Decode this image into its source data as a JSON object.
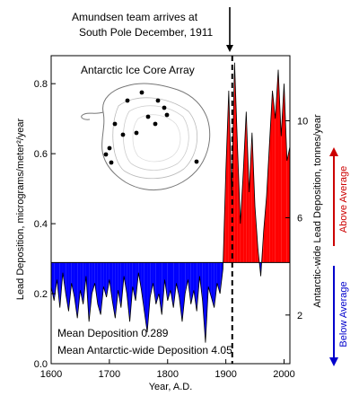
{
  "chart_data": {
    "type": "area",
    "title": "",
    "annotation_title": "Amundsen team arrives at South Pole December, 1911",
    "annotation_lines": [
      "Amundsen team arrives at",
      "South Pole December, 1911"
    ],
    "event_year": 1911,
    "inset_label": "Antarctic Ice Core Array",
    "xlabel": "Year, A.D.",
    "ylabel_left": "Lead Deposition, micrograms/meter²/year",
    "ylabel_right": "Antarctic-wide Lead Deposition, tonnes/year",
    "xlim": [
      1600,
      2010
    ],
    "ylim": [
      0,
      0.88
    ],
    "x_ticks": [
      "1600",
      "1700",
      "1800",
      "1900",
      "2000"
    ],
    "y_ticks_left": [
      "0.0",
      "0.2",
      "0.4",
      "0.6",
      "0.8"
    ],
    "y_ticks_right": [
      "2",
      "6",
      "10"
    ],
    "y_ticks_right_positions": [
      0.139,
      0.417,
      0.694
    ],
    "mean_deposition": 0.289,
    "mean_label": "Mean Deposition 0.289",
    "mean_antarctic_label": "Mean Antarctic-wide Deposition 4.05",
    "above_label": "Above Average",
    "below_label": "Below Average",
    "colors": {
      "above": "#ff0000",
      "below": "#0000ff",
      "above_text": "#cc0000",
      "below_text": "#0000cc"
    },
    "series": [
      {
        "x": [
          1600,
          1605,
          1610,
          1615,
          1620,
          1625,
          1630,
          1635,
          1640,
          1645,
          1650,
          1655,
          1660,
          1665,
          1670,
          1675,
          1680,
          1685,
          1690,
          1695,
          1700,
          1705,
          1710,
          1715,
          1720,
          1725,
          1730,
          1735,
          1740,
          1745,
          1750,
          1755,
          1760,
          1765,
          1770,
          1775,
          1780,
          1785,
          1790,
          1795,
          1800,
          1805,
          1810,
          1815,
          1820,
          1825,
          1830,
          1835,
          1840,
          1845,
          1850,
          1855,
          1860,
          1865,
          1870,
          1875,
          1880,
          1885,
          1890,
          1895,
          1900,
          1905,
          1910,
          1915,
          1920,
          1925,
          1930,
          1935,
          1940,
          1945,
          1950,
          1955,
          1960,
          1965,
          1970,
          1975,
          1980,
          1985,
          1990,
          1995,
          2000,
          2005,
          2010
        ],
        "values": [
          0.22,
          0.18,
          0.24,
          0.16,
          0.26,
          0.2,
          0.15,
          0.23,
          0.19,
          0.13,
          0.21,
          0.17,
          0.25,
          0.12,
          0.2,
          0.23,
          0.17,
          0.14,
          0.22,
          0.19,
          0.24,
          0.18,
          0.13,
          0.21,
          0.16,
          0.25,
          0.2,
          0.12,
          0.22,
          0.18,
          0.26,
          0.21,
          0.15,
          0.09,
          0.19,
          0.23,
          0.17,
          0.2,
          0.14,
          0.24,
          0.18,
          0.21,
          0.16,
          0.23,
          0.19,
          0.12,
          0.2,
          0.24,
          0.17,
          0.21,
          0.15,
          0.25,
          0.18,
          0.06,
          0.22,
          0.19,
          0.16,
          0.23,
          0.2,
          0.27,
          0.55,
          0.78,
          0.48,
          0.86,
          0.62,
          0.4,
          0.55,
          0.72,
          0.49,
          0.66,
          0.45,
          0.33,
          0.25,
          0.38,
          0.48,
          0.63,
          0.78,
          0.7,
          0.84,
          0.65,
          0.8,
          0.58,
          0.62
        ]
      }
    ]
  },
  "map_dots": [
    [
      142,
      112
    ],
    [
      158,
      103
    ],
    [
      176,
      112
    ],
    [
      183,
      120
    ],
    [
      165,
      130
    ],
    [
      173,
      138
    ],
    [
      186,
      128
    ],
    [
      128,
      138
    ],
    [
      137,
      150
    ],
    [
      152,
      148
    ],
    [
      122,
      165
    ],
    [
      118,
      172
    ],
    [
      124,
      181
    ],
    [
      219,
      180
    ]
  ]
}
